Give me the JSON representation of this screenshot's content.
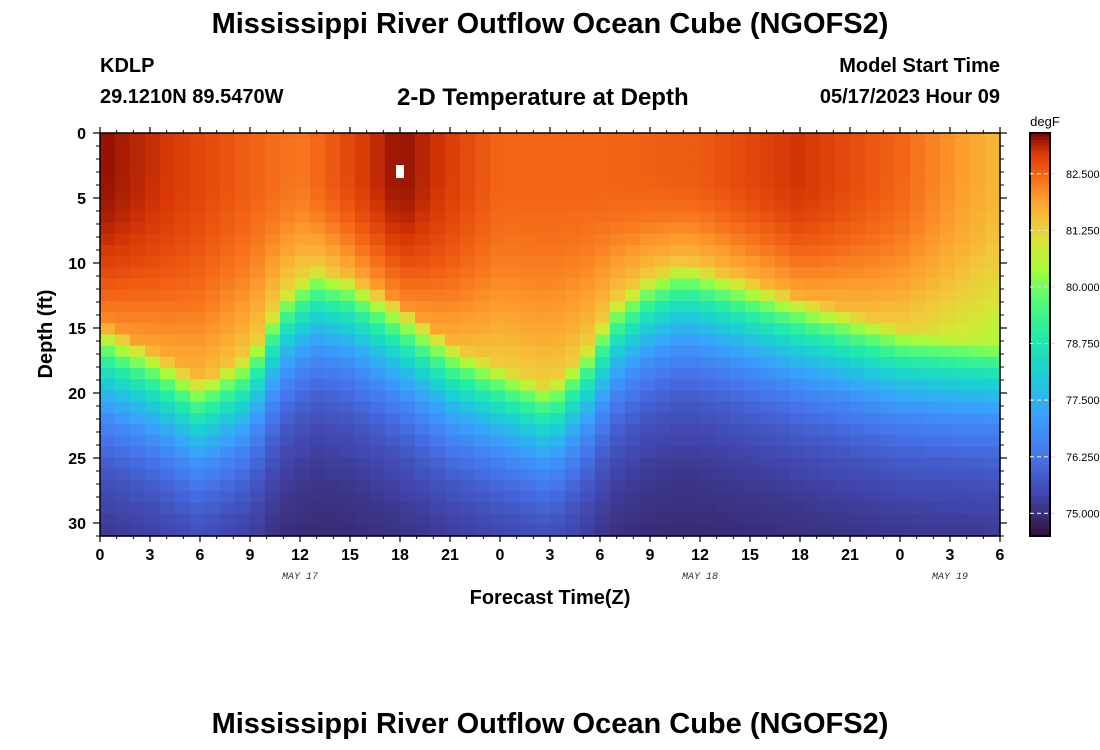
{
  "header": {
    "title": "Mississippi River Outflow Ocean Cube (NGOFS2)",
    "station_id": "KDLP",
    "coordinates": "29.1210N  89.5470W",
    "subtitle": "2-D Temperature at Depth",
    "model_start_label": "Model Start Time",
    "model_start_value": "05/17/2023 Hour 09"
  },
  "footer": {
    "title": "Mississippi River Outflow Ocean Cube (NGOFS2)"
  },
  "chart_data": {
    "type": "heatmap",
    "title": "2-D Temperature at Depth",
    "xlabel": "Forecast Time(Z)",
    "ylabel": "Depth (ft)",
    "x_range_hours": [
      0,
      54
    ],
    "x_tick_labels": [
      "0",
      "3",
      "6",
      "9",
      "12",
      "15",
      "18",
      "21",
      "0",
      "3",
      "6",
      "9",
      "12",
      "15",
      "18",
      "21",
      "0",
      "3",
      "6"
    ],
    "date_labels": [
      {
        "label": "MAY 17",
        "hour": 12
      },
      {
        "label": "MAY 18",
        "hour": 36
      },
      {
        "label": "MAY 19",
        "hour": 51
      }
    ],
    "y_range_ft": [
      0,
      31
    ],
    "y_ticks": [
      0,
      5,
      10,
      15,
      20,
      25,
      30
    ],
    "y_tick_labels": [
      "0",
      "5",
      "10",
      "15",
      "20",
      "25",
      "30"
    ],
    "colorbar": {
      "unit": "degF",
      "min": 74.5,
      "max": 83.4,
      "ticks": [
        75.0,
        76.25,
        77.5,
        78.75,
        80.0,
        81.25,
        82.5
      ],
      "tick_labels": [
        "75.000",
        "76.250",
        "77.500",
        "78.750",
        "80.000",
        "81.250",
        "82.500"
      ]
    },
    "thermocline_depth_ft": [
      {
        "hour": 0,
        "depth": 14.5
      },
      {
        "hour": 3,
        "depth": 16.5
      },
      {
        "hour": 6,
        "depth": 19
      },
      {
        "hour": 9,
        "depth": 17
      },
      {
        "hour": 11,
        "depth": 12.5
      },
      {
        "hour": 13,
        "depth": 10.5
      },
      {
        "hour": 15,
        "depth": 11
      },
      {
        "hour": 18,
        "depth": 13
      },
      {
        "hour": 21,
        "depth": 16
      },
      {
        "hour": 24,
        "depth": 18
      },
      {
        "hour": 27,
        "depth": 19.5
      },
      {
        "hour": 29,
        "depth": 17
      },
      {
        "hour": 31,
        "depth": 13
      },
      {
        "hour": 33,
        "depth": 11
      },
      {
        "hour": 35,
        "depth": 10
      },
      {
        "hour": 38,
        "depth": 11
      },
      {
        "hour": 42,
        "depth": 12.5
      },
      {
        "hour": 48,
        "depth": 15
      },
      {
        "hour": 54,
        "depth": 16.5
      }
    ],
    "surface_temp_degF": [
      {
        "hour": 0,
        "value": 83.3
      },
      {
        "hour": 6,
        "value": 82.8
      },
      {
        "hour": 12,
        "value": 82.3
      },
      {
        "hour": 18,
        "value": 83.3
      },
      {
        "hour": 24,
        "value": 82.5
      },
      {
        "hour": 30,
        "value": 82.5
      },
      {
        "hour": 36,
        "value": 82.6
      },
      {
        "hour": 42,
        "value": 83.0
      },
      {
        "hour": 48,
        "value": 82.5
      },
      {
        "hour": 54,
        "value": 81.6
      }
    ],
    "bottom_temp_degF": 74.8,
    "marker": {
      "hour": 18,
      "depth_ft": 3
    }
  }
}
